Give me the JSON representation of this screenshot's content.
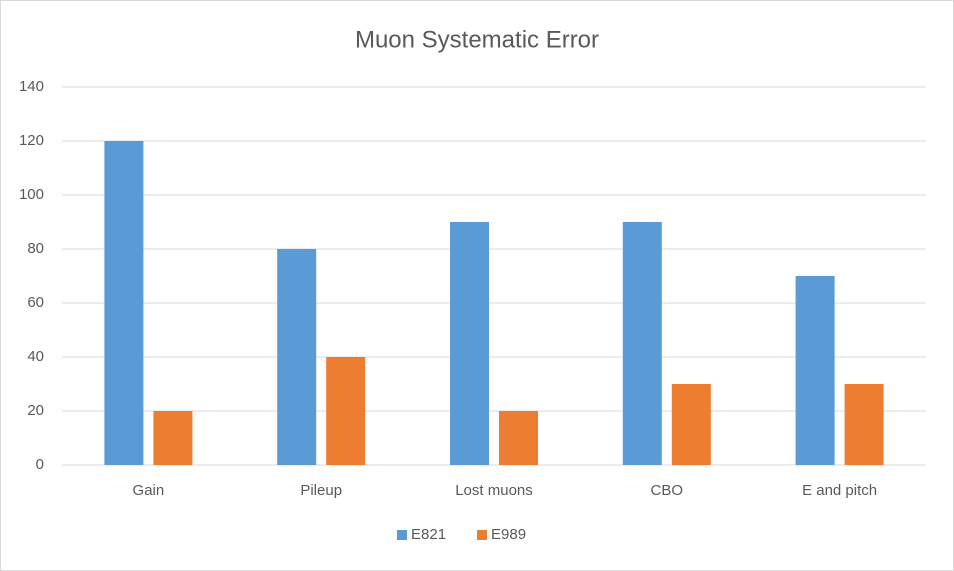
{
  "chart_data": {
    "type": "bar",
    "title": "Muon Systematic Error",
    "categories": [
      "Gain",
      "Pileup",
      "Lost muons",
      "CBO",
      "E and pitch"
    ],
    "series": [
      {
        "name": "E821",
        "color": "#5b9bd5",
        "values": [
          120,
          80,
          90,
          90,
          70
        ]
      },
      {
        "name": "E989",
        "color": "#ed7d31",
        "values": [
          20,
          40,
          20,
          30,
          30
        ]
      }
    ],
    "ylim": [
      0,
      140
    ],
    "yticks": [
      0,
      20,
      40,
      60,
      80,
      100,
      120,
      140
    ],
    "grid": true,
    "legend": "bottom"
  }
}
